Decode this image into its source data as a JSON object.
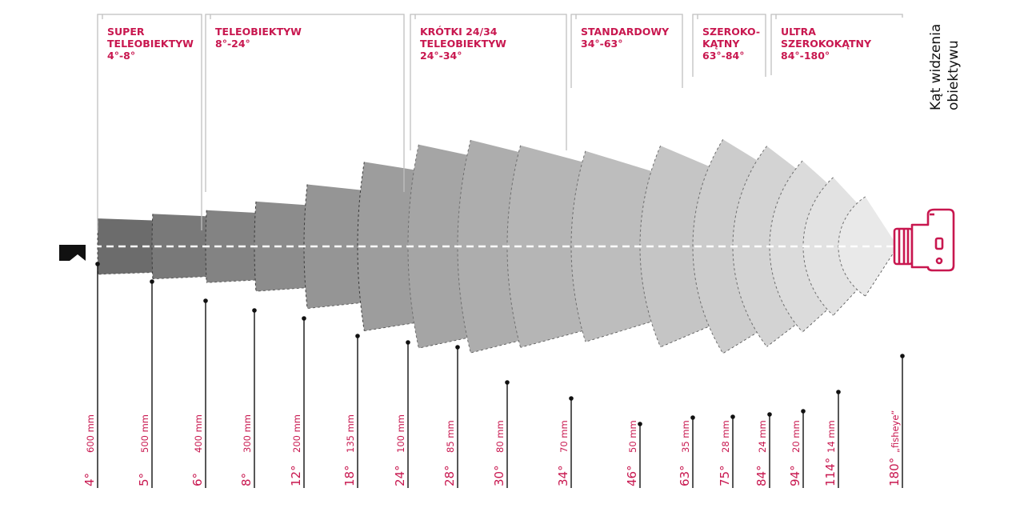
{
  "title_lines": [
    "Kąt widzenia",
    "obiektywu"
  ],
  "colors": {
    "accent": "#c8174f",
    "ink": "#111111",
    "bracket": "#bfbfbf"
  },
  "groups": [
    {
      "lines": [
        "SUPER",
        "TELEOBIEKTYW",
        "4°-8°"
      ]
    },
    {
      "lines": [
        "TELEOBIEKTYW",
        "8°-24°"
      ]
    },
    {
      "lines": [
        "KRÓTKI 24/34",
        "TELEOBIEKTYW",
        "24°-34°"
      ]
    },
    {
      "lines": [
        "STANDARDOWY",
        "34°-63°"
      ]
    },
    {
      "lines": [
        "SZEROKO-",
        "KĄTNY",
        "63°-84°"
      ]
    },
    {
      "lines": [
        "ULTRA",
        "SZEROKOKĄTNY",
        "84°-180°"
      ]
    }
  ],
  "lenses": [
    {
      "angle": 4,
      "angle_label": "4°",
      "focal_label": "600 mm"
    },
    {
      "angle": 5,
      "angle_label": "5°",
      "focal_label": "500 mm"
    },
    {
      "angle": 6,
      "angle_label": "6°",
      "focal_label": "400 mm"
    },
    {
      "angle": 8,
      "angle_label": "8°",
      "focal_label": "300 mm"
    },
    {
      "angle": 12,
      "angle_label": "12°",
      "focal_label": "200 mm"
    },
    {
      "angle": 18,
      "angle_label": "18°",
      "focal_label": "135 mm"
    },
    {
      "angle": 24,
      "angle_label": "24°",
      "focal_label": "100 mm"
    },
    {
      "angle": 28,
      "angle_label": "28°",
      "focal_label": "85 mm"
    },
    {
      "angle": 30,
      "angle_label": "30°",
      "focal_label": "80 mm"
    },
    {
      "angle": 34,
      "angle_label": "34°",
      "focal_label": "70 mm"
    },
    {
      "angle": 46,
      "angle_label": "46°",
      "focal_label": "50 mm"
    },
    {
      "angle": 63,
      "angle_label": "63°",
      "focal_label": "35 mm"
    },
    {
      "angle": 75,
      "angle_label": "75°",
      "focal_label": "28 mm"
    },
    {
      "angle": 84,
      "angle_label": "84°",
      "focal_label": "24 mm"
    },
    {
      "angle": 94,
      "angle_label": "94°",
      "focal_label": "20 mm"
    },
    {
      "angle": 114,
      "angle_label": "114°",
      "focal_label": "14 mm"
    },
    {
      "angle": 180,
      "angle_label": "180°",
      "focal_label": "„fisheye”"
    }
  ]
}
